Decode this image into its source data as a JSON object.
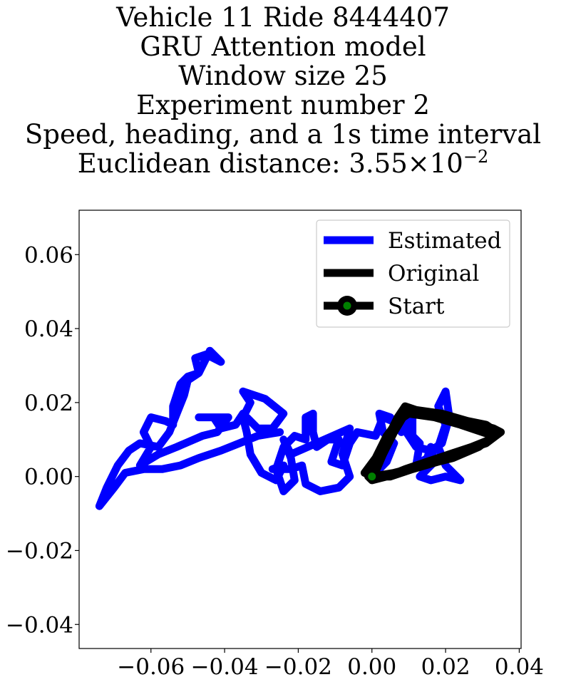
{
  "chart_data": {
    "type": "line",
    "title_lines": [
      "Vehicle 11 Ride 8444407",
      "GRU Attention model",
      "Window size 25",
      "Experiment number 2",
      "Speed, heading, and a 1s time interval"
    ],
    "title_metric_prefix": "Euclidean distance: 3.55×10",
    "title_metric_exponent": "−2",
    "xlim": [
      -0.0795,
      0.0405
    ],
    "ylim": [
      -0.0465,
      0.072
    ],
    "x_ticks": [
      -0.06,
      -0.04,
      -0.02,
      0.0,
      0.02,
      0.04
    ],
    "x_tick_labels": [
      "−0.06",
      "−0.04",
      "−0.02",
      "0.00",
      "0.02",
      "0.04"
    ],
    "y_ticks": [
      -0.04,
      -0.02,
      0.0,
      0.02,
      0.04,
      0.06
    ],
    "y_tick_labels": [
      "−0.04",
      "−0.02",
      "0.00",
      "0.02",
      "0.04",
      "0.06"
    ],
    "grid": false,
    "legend_position": "top-right",
    "colors": {
      "estimated": "#0000ff",
      "original": "#000000",
      "start_marker": "#008000"
    },
    "series": [
      {
        "name": "Estimated",
        "points": [
          [
            0.0,
            0.0
          ],
          [
            0.004,
            0.004
          ],
          [
            0.006,
            0.009
          ],
          [
            0.003,
            0.012
          ],
          [
            0.002,
            0.017
          ],
          [
            0.005,
            0.016
          ],
          [
            0.008,
            0.012
          ],
          [
            0.011,
            0.016
          ],
          [
            0.011,
            0.011
          ],
          [
            0.013,
            0.009
          ],
          [
            0.012,
            0.003
          ],
          [
            0.015,
            0.005
          ],
          [
            0.016,
            0.008
          ],
          [
            0.017,
            0.004
          ],
          [
            0.013,
            0.0
          ],
          [
            0.016,
            -0.001
          ],
          [
            0.02,
            0.0
          ],
          [
            0.024,
            -0.001
          ],
          [
            0.02,
            0.003
          ],
          [
            0.018,
            0.008
          ],
          [
            0.02,
            0.014
          ],
          [
            0.018,
            0.019
          ],
          [
            0.02,
            0.023
          ],
          [
            0.021,
            0.016
          ],
          [
            0.019,
            0.009
          ],
          [
            0.016,
            0.007
          ],
          [
            0.012,
            0.008
          ],
          [
            0.008,
            0.014
          ],
          [
            0.003,
            0.016
          ],
          [
            0.001,
            0.011
          ],
          [
            -0.004,
            0.012
          ],
          [
            -0.006,
            0.009
          ],
          [
            -0.008,
            0.003
          ],
          [
            -0.011,
            0.004
          ],
          [
            -0.009,
            0.01
          ],
          [
            -0.012,
            0.01
          ],
          [
            -0.015,
            0.008
          ],
          [
            -0.016,
            0.012
          ],
          [
            -0.016,
            0.017
          ],
          [
            -0.018,
            0.016
          ],
          [
            -0.018,
            0.01
          ],
          [
            -0.021,
            0.011
          ],
          [
            -0.024,
            0.008
          ],
          [
            -0.026,
            0.002
          ],
          [
            -0.024,
            -0.004
          ],
          [
            -0.021,
            -0.001
          ],
          [
            -0.022,
            0.005
          ],
          [
            -0.024,
            0.01
          ],
          [
            -0.022,
            0.006
          ],
          [
            -0.006,
            0.013
          ],
          [
            -0.008,
            0.006
          ],
          [
            -0.006,
            0.0
          ],
          [
            -0.009,
            -0.003
          ],
          [
            -0.014,
            -0.004
          ],
          [
            -0.018,
            -0.002
          ],
          [
            -0.019,
            0.003
          ],
          [
            -0.022,
            0.002
          ],
          [
            -0.027,
            0.002
          ],
          [
            -0.024,
            0.003
          ],
          [
            -0.026,
            -0.001
          ],
          [
            -0.03,
            0.001
          ],
          [
            -0.033,
            0.006
          ],
          [
            -0.034,
            0.012
          ],
          [
            -0.035,
            0.016
          ],
          [
            -0.033,
            0.02
          ],
          [
            -0.035,
            0.023
          ],
          [
            -0.029,
            0.021
          ],
          [
            -0.024,
            0.017
          ],
          [
            -0.027,
            0.013
          ],
          [
            -0.031,
            0.013
          ],
          [
            -0.035,
            0.017
          ],
          [
            -0.037,
            0.014
          ],
          [
            -0.041,
            0.013
          ],
          [
            -0.043,
            0.016
          ],
          [
            -0.047,
            0.016
          ],
          [
            -0.039,
            0.016
          ],
          [
            -0.042,
            0.012
          ],
          [
            -0.046,
            0.011
          ],
          [
            -0.053,
            0.008
          ],
          [
            -0.058,
            0.006
          ],
          [
            -0.063,
            0.003
          ],
          [
            -0.06,
            0.008
          ],
          [
            -0.062,
            0.012
          ],
          [
            -0.06,
            0.016
          ],
          [
            -0.056,
            0.015
          ],
          [
            -0.054,
            0.014
          ],
          [
            -0.054,
            0.019
          ],
          [
            -0.052,
            0.025
          ],
          [
            -0.05,
            0.027
          ],
          [
            -0.047,
            0.028
          ],
          [
            -0.048,
            0.032
          ],
          [
            -0.045,
            0.033
          ],
          [
            -0.041,
            0.031
          ],
          [
            -0.044,
            0.034
          ],
          [
            -0.047,
            0.028
          ],
          [
            -0.05,
            0.026
          ],
          [
            -0.051,
            0.022
          ],
          [
            -0.053,
            0.017
          ],
          [
            -0.055,
            0.012
          ],
          [
            -0.058,
            0.008
          ],
          [
            -0.063,
            0.009
          ],
          [
            -0.066,
            0.007
          ],
          [
            -0.069,
            0.003
          ],
          [
            -0.072,
            -0.003
          ],
          [
            -0.074,
            -0.008
          ],
          [
            -0.07,
            -0.003
          ],
          [
            -0.067,
            0.001
          ],
          [
            -0.062,
            0.002
          ],
          [
            -0.057,
            0.002
          ],
          [
            -0.052,
            0.003
          ],
          [
            -0.047,
            0.005
          ],
          [
            -0.041,
            0.007
          ],
          [
            -0.036,
            0.009
          ],
          [
            -0.031,
            0.011
          ],
          [
            -0.025,
            0.012
          ]
        ]
      },
      {
        "name": "Original",
        "points": [
          [
            0.0,
            0.0
          ],
          [
            0.0,
            -0.001
          ],
          [
            0.003,
            0.006
          ],
          [
            0.006,
            0.012
          ],
          [
            0.009,
            0.017
          ],
          [
            0.01,
            0.018
          ],
          [
            0.014,
            0.017
          ],
          [
            0.02,
            0.016
          ],
          [
            0.026,
            0.015
          ],
          [
            0.031,
            0.014
          ],
          [
            0.034,
            0.012
          ],
          [
            0.032,
            0.01
          ],
          [
            0.027,
            0.008
          ],
          [
            0.021,
            0.006
          ],
          [
            0.015,
            0.004
          ],
          [
            0.009,
            0.002
          ],
          [
            0.004,
            0.0
          ],
          [
            0.0,
            -0.001
          ],
          [
            -0.001,
            0.0
          ],
          [
            0.001,
            0.004
          ],
          [
            0.004,
            0.01
          ],
          [
            0.007,
            0.016
          ],
          [
            0.009,
            0.019
          ],
          [
            0.012,
            0.018
          ],
          [
            0.019,
            0.017
          ],
          [
            0.026,
            0.015
          ],
          [
            0.033,
            0.013
          ],
          [
            0.035,
            0.012
          ],
          [
            0.031,
            0.009
          ],
          [
            0.025,
            0.007
          ],
          [
            0.018,
            0.004
          ],
          [
            0.011,
            0.002
          ],
          [
            0.005,
            0.0
          ],
          [
            0.0,
            0.0
          ],
          [
            -0.002,
            0.001
          ],
          [
            0.001,
            0.005
          ],
          [
            0.004,
            0.011
          ],
          [
            0.007,
            0.015
          ],
          [
            0.01,
            0.017
          ],
          [
            0.017,
            0.016
          ],
          [
            0.024,
            0.014
          ],
          [
            0.03,
            0.012
          ],
          [
            0.033,
            0.011
          ],
          [
            0.029,
            0.008
          ],
          [
            0.022,
            0.005
          ],
          [
            0.014,
            0.003
          ],
          [
            0.006,
            0.001
          ],
          [
            0.0,
            0.0
          ]
        ]
      }
    ],
    "legend": [
      {
        "label": "Estimated",
        "key": "estimated"
      },
      {
        "label": "Original",
        "key": "original"
      },
      {
        "label": "Start",
        "key": "start"
      }
    ],
    "start_point": [
      0.0,
      0.0
    ]
  }
}
